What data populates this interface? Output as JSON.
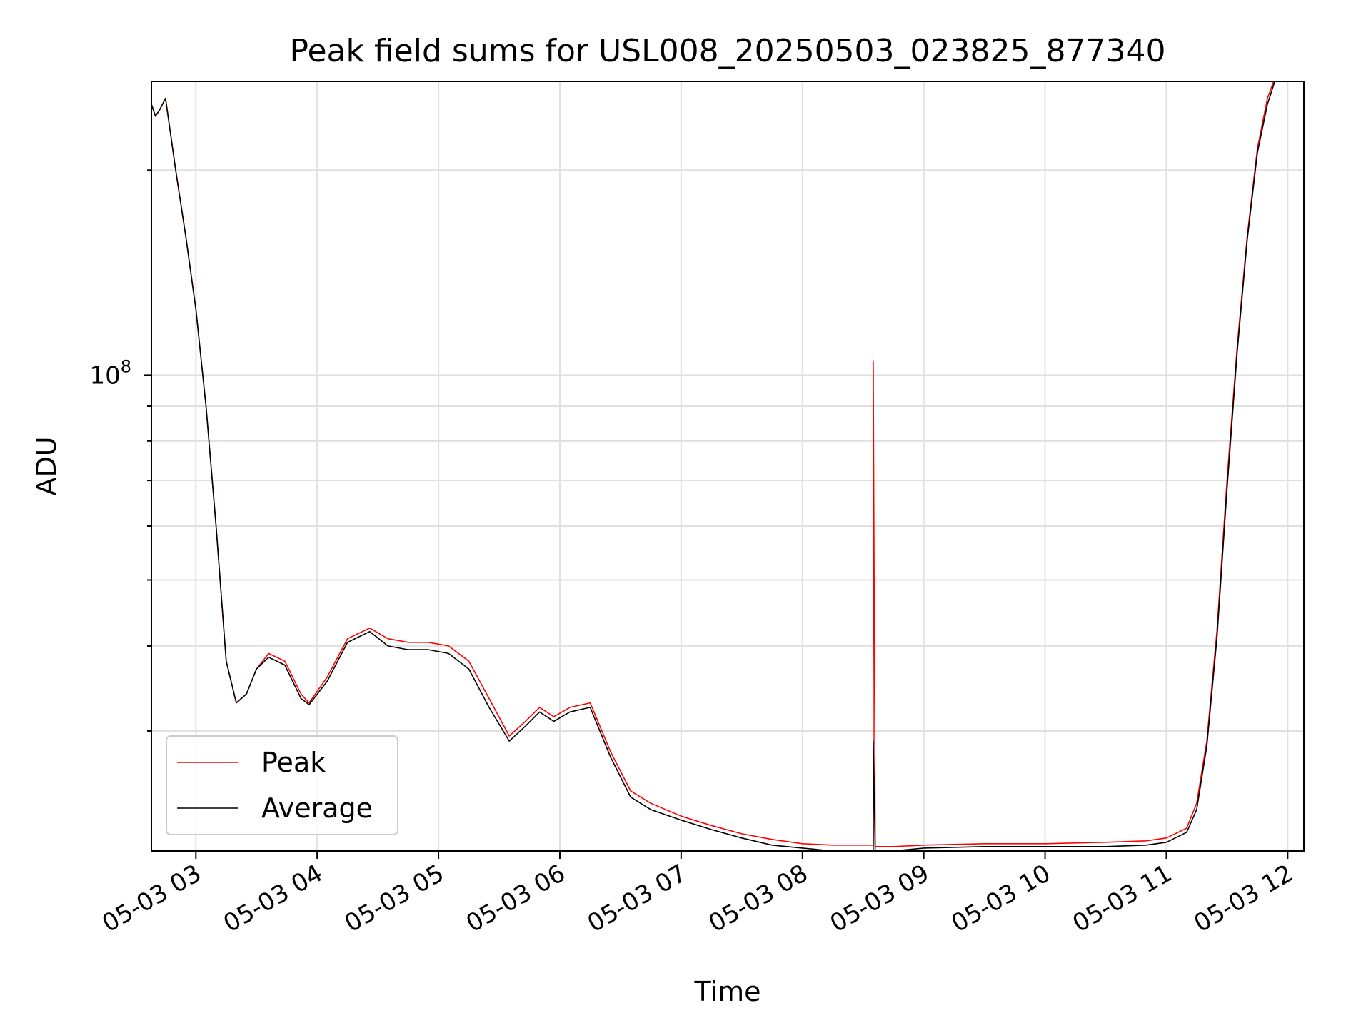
{
  "chart_data": {
    "type": "line",
    "title": "Peak field sums for USL008_20250503_023825_877340",
    "xlabel": "Time",
    "ylabel": "ADU",
    "xlim": [
      "2025-05-03 02:38",
      "2025-05-03 12:08"
    ],
    "ylim": [
      20000000,
      270000000
    ],
    "y_scale": "log",
    "grid": true,
    "legend_position": "lower-left",
    "x_ticks": [
      {
        "t": "2025-05-03 03:00",
        "label": "05-03 03"
      },
      {
        "t": "2025-05-03 04:00",
        "label": "05-03 04"
      },
      {
        "t": "2025-05-03 05:00",
        "label": "05-03 05"
      },
      {
        "t": "2025-05-03 06:00",
        "label": "05-03 06"
      },
      {
        "t": "2025-05-03 07:00",
        "label": "05-03 07"
      },
      {
        "t": "2025-05-03 08:00",
        "label": "05-03 08"
      },
      {
        "t": "2025-05-03 09:00",
        "label": "05-03 09"
      },
      {
        "t": "2025-05-03 10:00",
        "label": "05-03 10"
      },
      {
        "t": "2025-05-03 11:00",
        "label": "05-03 11"
      },
      {
        "t": "2025-05-03 12:00",
        "label": "05-03 12"
      }
    ],
    "y_major_tick": {
      "value": 100000000,
      "base": "10",
      "exp": "8"
    },
    "y_minor_ticks": [
      30000000,
      40000000,
      50000000,
      60000000,
      70000000,
      80000000,
      90000000,
      200000000
    ],
    "series": [
      {
        "name": "Peak",
        "color": "#ff0000",
        "x": [
          "2025-05-03 02:38",
          "2025-05-03 02:40",
          "2025-05-03 02:42",
          "2025-05-03 02:45",
          "2025-05-03 02:50",
          "2025-05-03 02:55",
          "2025-05-03 03:00",
          "2025-05-03 03:05",
          "2025-05-03 03:10",
          "2025-05-03 03:15",
          "2025-05-03 03:20",
          "2025-05-03 03:25",
          "2025-05-03 03:30",
          "2025-05-03 03:36",
          "2025-05-03 03:44",
          "2025-05-03 03:52",
          "2025-05-03 03:56",
          "2025-05-03 04:05",
          "2025-05-03 04:15",
          "2025-05-03 04:26",
          "2025-05-03 04:35",
          "2025-05-03 04:45",
          "2025-05-03 04:55",
          "2025-05-03 05:05",
          "2025-05-03 05:15",
          "2025-05-03 05:25",
          "2025-05-03 05:35",
          "2025-05-03 05:43",
          "2025-05-03 05:50",
          "2025-05-03 05:57",
          "2025-05-03 06:05",
          "2025-05-03 06:15",
          "2025-05-03 06:25",
          "2025-05-03 06:35",
          "2025-05-03 06:45",
          "2025-05-03 07:00",
          "2025-05-03 07:15",
          "2025-05-03 07:30",
          "2025-05-03 07:45",
          "2025-05-03 08:00",
          "2025-05-03 08:15",
          "2025-05-03 08:35",
          "2025-05-03 08:35",
          "2025-05-03 08:36",
          "2025-05-03 08:45",
          "2025-05-03 09:00",
          "2025-05-03 09:30",
          "2025-05-03 10:00",
          "2025-05-03 10:30",
          "2025-05-03 10:50",
          "2025-05-03 11:00",
          "2025-05-03 11:10",
          "2025-05-03 11:15",
          "2025-05-03 11:20",
          "2025-05-03 11:25",
          "2025-05-03 11:30",
          "2025-05-03 11:35",
          "2025-05-03 11:40",
          "2025-05-03 11:45",
          "2025-05-03 11:50",
          "2025-05-03 11:55"
        ],
        "y": [
          250000000,
          240000000,
          245000000,
          255000000,
          200000000,
          160000000,
          125000000,
          90000000,
          60000000,
          38000000,
          33000000,
          34000000,
          37000000,
          39000000,
          38000000,
          34000000,
          33000000,
          36000000,
          41000000,
          42500000,
          41000000,
          40500000,
          40500000,
          40000000,
          38000000,
          33500000,
          29500000,
          31000000,
          32500000,
          31500000,
          32500000,
          33000000,
          28000000,
          24500000,
          23500000,
          22500000,
          21800000,
          21200000,
          20800000,
          20500000,
          20400000,
          20400000,
          105000000,
          20300000,
          20300000,
          20400000,
          20500000,
          20500000,
          20600000,
          20700000,
          20900000,
          21600000,
          23500000,
          29000000,
          42000000,
          70000000,
          110000000,
          160000000,
          215000000,
          255000000,
          280000000
        ]
      },
      {
        "name": "Average",
        "color": "#000000",
        "x": [
          "2025-05-03 02:38",
          "2025-05-03 02:40",
          "2025-05-03 02:42",
          "2025-05-03 02:45",
          "2025-05-03 02:50",
          "2025-05-03 02:55",
          "2025-05-03 03:00",
          "2025-05-03 03:05",
          "2025-05-03 03:10",
          "2025-05-03 03:15",
          "2025-05-03 03:20",
          "2025-05-03 03:25",
          "2025-05-03 03:30",
          "2025-05-03 03:36",
          "2025-05-03 03:44",
          "2025-05-03 03:52",
          "2025-05-03 03:56",
          "2025-05-03 04:05",
          "2025-05-03 04:15",
          "2025-05-03 04:26",
          "2025-05-03 04:35",
          "2025-05-03 04:45",
          "2025-05-03 04:55",
          "2025-05-03 05:05",
          "2025-05-03 05:15",
          "2025-05-03 05:25",
          "2025-05-03 05:35",
          "2025-05-03 05:43",
          "2025-05-03 05:50",
          "2025-05-03 05:57",
          "2025-05-03 06:05",
          "2025-05-03 06:15",
          "2025-05-03 06:25",
          "2025-05-03 06:35",
          "2025-05-03 06:45",
          "2025-05-03 07:00",
          "2025-05-03 07:15",
          "2025-05-03 07:30",
          "2025-05-03 07:45",
          "2025-05-03 08:00",
          "2025-05-03 08:15",
          "2025-05-03 08:35",
          "2025-05-03 08:35",
          "2025-05-03 08:36",
          "2025-05-03 08:45",
          "2025-05-03 09:00",
          "2025-05-03 09:30",
          "2025-05-03 10:00",
          "2025-05-03 10:30",
          "2025-05-03 10:50",
          "2025-05-03 11:00",
          "2025-05-03 11:10",
          "2025-05-03 11:15",
          "2025-05-03 11:20",
          "2025-05-03 11:25",
          "2025-05-03 11:30",
          "2025-05-03 11:35",
          "2025-05-03 11:40",
          "2025-05-03 11:45",
          "2025-05-03 11:50",
          "2025-05-03 11:55"
        ],
        "y": [
          250000000,
          240000000,
          245000000,
          255000000,
          200000000,
          160000000,
          125000000,
          90000000,
          60000000,
          38000000,
          33000000,
          34000000,
          37000000,
          38500000,
          37500000,
          33500000,
          32800000,
          35500000,
          40500000,
          42000000,
          40000000,
          39500000,
          39500000,
          39000000,
          37000000,
          32500000,
          29000000,
          30500000,
          32000000,
          31000000,
          32000000,
          32500000,
          27500000,
          24000000,
          23000000,
          22200000,
          21500000,
          20900000,
          20400000,
          20200000,
          20000000,
          20000000,
          29000000,
          19900000,
          20000000,
          20200000,
          20300000,
          20300000,
          20300000,
          20400000,
          20600000,
          21300000,
          23000000,
          28500000,
          41000000,
          68000000,
          108000000,
          158000000,
          212000000,
          250000000,
          278000000
        ]
      }
    ]
  }
}
